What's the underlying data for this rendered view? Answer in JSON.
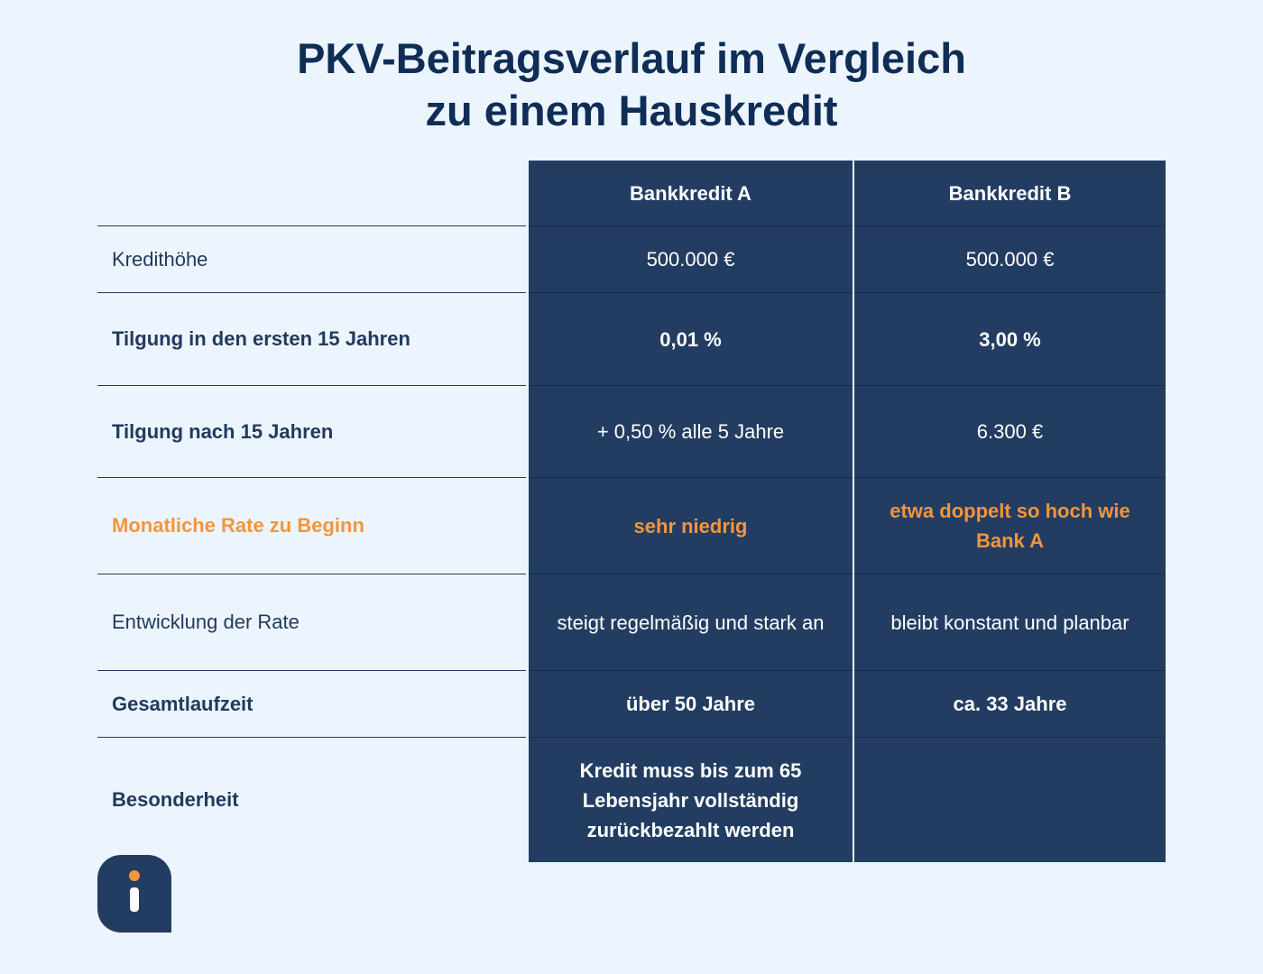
{
  "title": {
    "line1": "PKV-Beitragsverlauf im Vergleich",
    "line2": "zu einem Hauskredit"
  },
  "table": {
    "columns": [
      "Bankkredit A",
      "Bankkredit B"
    ],
    "rows": [
      {
        "label": "Kredithöhe",
        "a": "500.000 €",
        "b": "500.000 €"
      },
      {
        "label": "Tilgung in den ersten 15 Jahren",
        "a": "0,01 %",
        "b": "3,00 %"
      },
      {
        "label": "Tilgung nach 15 Jahren",
        "a": "+ 0,50 % alle 5 Jahre",
        "b": "6.300 €"
      },
      {
        "label": "Monatliche Rate zu Beginn",
        "a": "sehr niedrig",
        "b": "etwa doppelt so hoch wie Bank A"
      },
      {
        "label": "Entwicklung der Rate",
        "a": "steigt regelmäßig und stark an",
        "b": "bleibt konstant und planbar"
      },
      {
        "label": "Gesamtlaufzeit",
        "a": "über 50 Jahre",
        "b": "ca. 33 Jahre"
      },
      {
        "label": "Besonderheit",
        "a": "Kredit muss bis zum 65 Lebensjahr vollständig zurückbezahlt werden",
        "b": ""
      }
    ]
  },
  "colors": {
    "navy": "#233d62",
    "title": "#0f2d56",
    "accent": "#f4953c",
    "background": "#ecf5fd"
  },
  "logo": {
    "icon": "info-icon"
  }
}
